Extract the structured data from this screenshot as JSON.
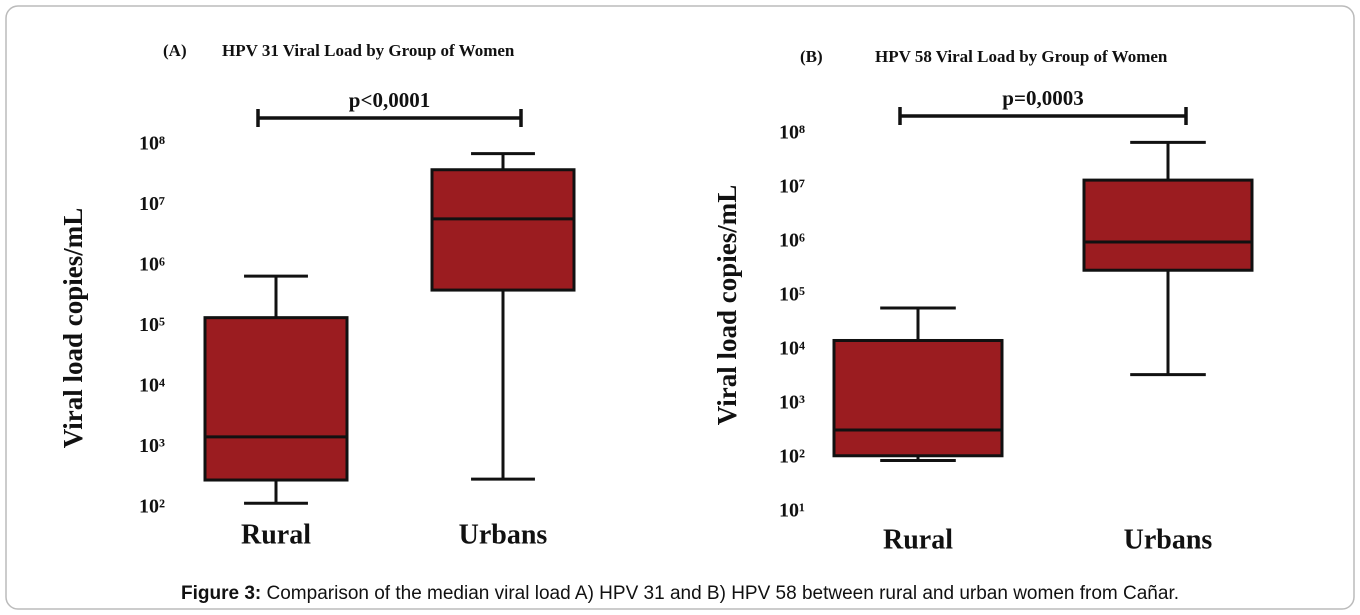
{
  "chart_data": [
    {
      "type": "box",
      "panel": "(A)",
      "title": "HPV  31 Viral Load by Group of Women",
      "ylabel": "Viral load copies/mL",
      "categories": [
        "Rural",
        "Urbans"
      ],
      "color": "#9b1c20",
      "log_y": true,
      "min": [
        120,
        300
      ],
      "q1": [
        290,
        400000
      ],
      "median": [
        1500,
        6000000
      ],
      "q3": [
        140000,
        39000000
      ],
      "max": [
        680000,
        72000000
      ],
      "ylim": [
        100,
        100000000
      ],
      "yticks": [
        {
          "value": 100,
          "label": "10²"
        },
        {
          "value": 1000,
          "label": "10³"
        },
        {
          "value": 10000,
          "label": "10⁴"
        },
        {
          "value": 100000,
          "label": "10⁵"
        },
        {
          "value": 1000000,
          "label": "10⁶"
        },
        {
          "value": 10000000,
          "label": "10⁷"
        },
        {
          "value": 100000000,
          "label": "10⁸"
        }
      ],
      "annotation": "p<0,0001"
    },
    {
      "type": "box",
      "panel": "(B)",
      "title": "HPV  58 Viral Load by Group of Women",
      "ylabel": "Viral load copies/mL",
      "categories": [
        "Rural",
        "Urbans"
      ],
      "color": "#9b1c20",
      "log_y": true,
      "min": [
        90,
        3500
      ],
      "q1": [
        110,
        300000
      ],
      "median": [
        330,
        1000000
      ],
      "q3": [
        15000,
        14000000
      ],
      "max": [
        60000,
        70000000
      ],
      "ylim": [
        10,
        100000000
      ],
      "yticks": [
        {
          "value": 10,
          "label": "10¹"
        },
        {
          "value": 100,
          "label": "10²"
        },
        {
          "value": 1000,
          "label": "10³"
        },
        {
          "value": 10000,
          "label": "10⁴"
        },
        {
          "value": 100000,
          "label": "10⁵"
        },
        {
          "value": 1000000,
          "label": "10⁶"
        },
        {
          "value": 10000000,
          "label": "10⁷"
        },
        {
          "value": 100000000,
          "label": "10⁸"
        }
      ],
      "annotation": "p=0,0003"
    }
  ],
  "caption": {
    "label": "Figure 3:",
    "text": "Comparison of the median viral load A) HPV 31 and B) HPV 58 between rural and urban women from Cañar."
  }
}
